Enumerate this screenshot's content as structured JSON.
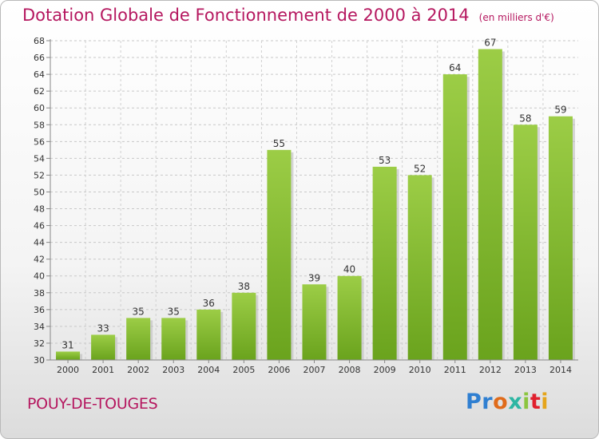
{
  "chart_data": {
    "type": "bar",
    "title": "Dotation Globale de Fonctionnement de 2000 à 2014",
    "subtitle": "(en milliers d'€)",
    "categories": [
      "2000",
      "2001",
      "2002",
      "2003",
      "2004",
      "2005",
      "2006",
      "2007",
      "2008",
      "2009",
      "2010",
      "2011",
      "2012",
      "2013",
      "2014"
    ],
    "values": [
      31,
      33,
      35,
      35,
      36,
      38,
      55,
      39,
      40,
      53,
      52,
      64,
      67,
      58,
      59
    ],
    "ylim": [
      30,
      68
    ],
    "yticks": [
      30,
      32,
      34,
      36,
      38,
      40,
      42,
      44,
      46,
      48,
      50,
      52,
      54,
      56,
      58,
      60,
      62,
      64,
      66,
      68
    ],
    "grid": true,
    "colors": {
      "bar_light": "#9ccd46",
      "bar_dark": "#6aa31d",
      "title": "#b5175f"
    }
  },
  "commune": "POUY-DE-TOUGES",
  "logo": {
    "text": "Proxiti",
    "letter_colors": [
      "#2f7fd1",
      "#2f7fd1",
      "#e06b1a",
      "#2db6a3",
      "#8bc53f",
      "#e0202e",
      "#e5a51b"
    ]
  }
}
